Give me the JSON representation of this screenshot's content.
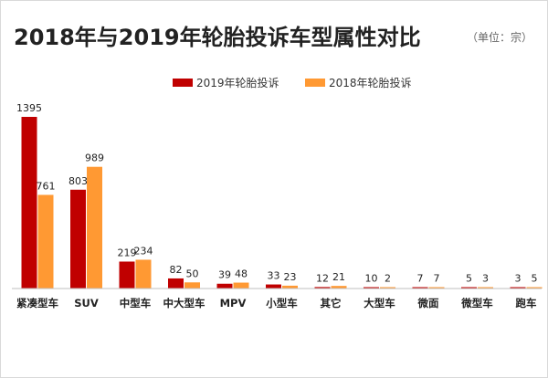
{
  "chart_data": {
    "type": "bar",
    "title": "2018年与2019年轮胎投诉车型属性对比",
    "subtitle": "（单位：宗）",
    "xlabel": "",
    "ylabel": "",
    "ylim": [
      0,
      1450
    ],
    "grid": false,
    "legend_position": "top-center",
    "categories": [
      "紧凑型车",
      "SUV",
      "中型车",
      "中大型车",
      "MPV",
      "小型车",
      "其它",
      "大型车",
      "微面",
      "微型车",
      "跑车"
    ],
    "series": [
      {
        "name": "2019年轮胎投诉",
        "color": "#c00000",
        "values": [
          1395,
          803,
          219,
          82,
          39,
          33,
          12,
          10,
          7,
          5,
          3
        ]
      },
      {
        "name": "2018年轮胎投诉",
        "color": "#ff9933",
        "values": [
          761,
          989,
          234,
          50,
          48,
          23,
          21,
          2,
          7,
          3,
          5
        ]
      }
    ]
  }
}
